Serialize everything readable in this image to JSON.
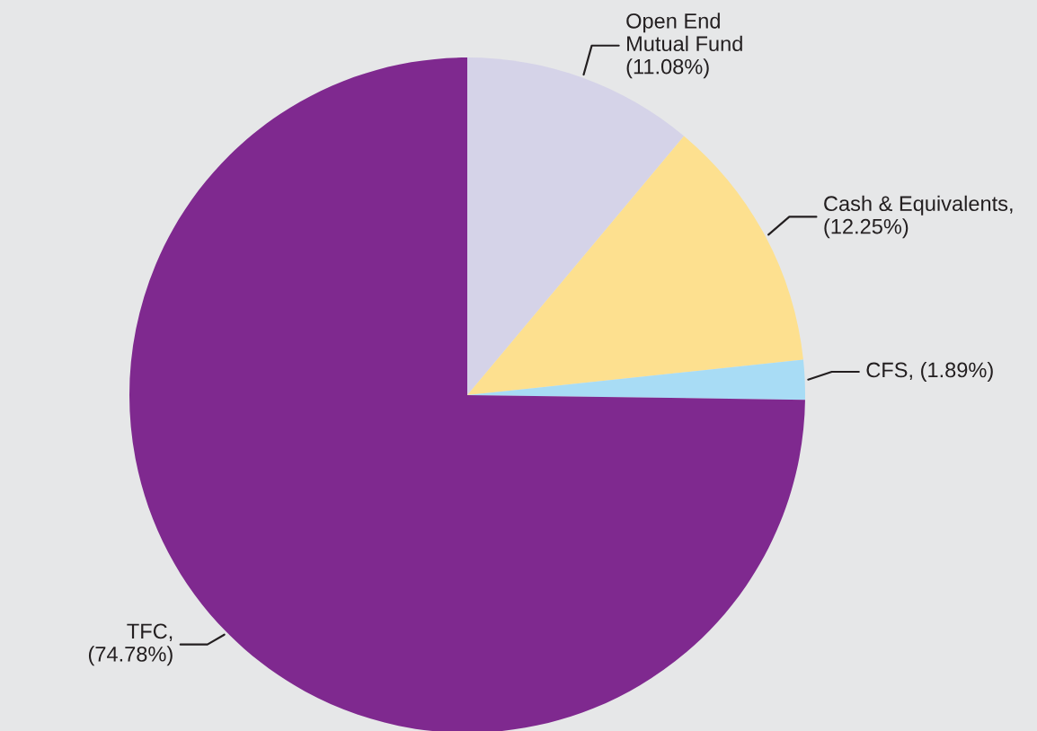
{
  "chart_data": {
    "type": "pie",
    "categories": [
      "Open End\nMutual Fund\n(11.08%)",
      "Cash & Equivalents,\n(12.25%)",
      "CFS, (1.89%)",
      "TFC,\n(74.78%)"
    ],
    "values": [
      11.08,
      12.25,
      1.89,
      74.78
    ],
    "colors": [
      "#d5d3e8",
      "#fde08f",
      "#a8dcf5",
      "#7f298f"
    ],
    "legend": false
  }
}
